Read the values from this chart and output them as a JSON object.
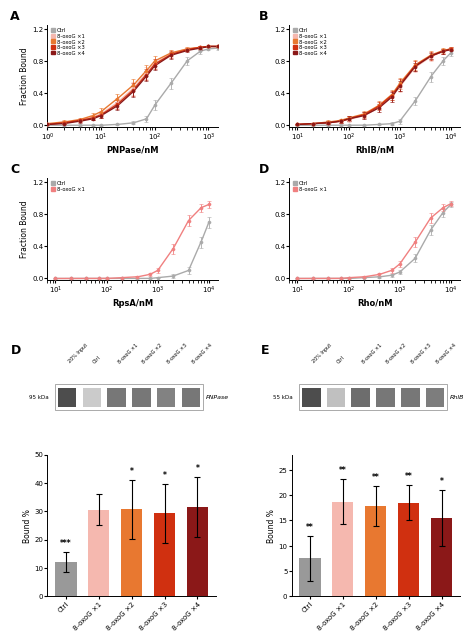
{
  "panel_A": {
    "xlabel": "PNPase/nM",
    "ylabel": "Fraction Bound",
    "xlim": [
      1,
      1500
    ],
    "ylim": [
      -0.02,
      1.25
    ],
    "yticks": [
      0.0,
      0.4,
      0.8,
      1.2
    ],
    "series": {
      "Ctrl": {
        "color": "#aaaaaa",
        "x": [
          1,
          2,
          4,
          7,
          10,
          20,
          40,
          70,
          100,
          200,
          400,
          700,
          1000,
          1500
        ],
        "y": [
          0.0,
          0.0,
          0.0,
          0.0,
          0.0,
          0.01,
          0.03,
          0.08,
          0.25,
          0.52,
          0.8,
          0.92,
          0.95,
          0.96
        ],
        "yerr": [
          0.005,
          0.005,
          0.005,
          0.005,
          0.005,
          0.01,
          0.02,
          0.04,
          0.06,
          0.07,
          0.05,
          0.03,
          0.02,
          0.02
        ]
      },
      "8-oxoG ×1": {
        "color": "#f5b8af",
        "x": [
          1,
          2,
          4,
          7,
          10,
          20,
          40,
          70,
          100,
          200,
          400,
          700,
          1000,
          1500
        ],
        "y": [
          0.01,
          0.03,
          0.06,
          0.1,
          0.14,
          0.28,
          0.46,
          0.65,
          0.77,
          0.89,
          0.95,
          0.97,
          0.98,
          0.98
        ],
        "yerr": [
          0.01,
          0.02,
          0.02,
          0.03,
          0.04,
          0.06,
          0.08,
          0.07,
          0.06,
          0.04,
          0.02,
          0.02,
          0.01,
          0.01
        ]
      },
      "8-oxoG ×2": {
        "color": "#e87830",
        "x": [
          1,
          2,
          4,
          7,
          10,
          20,
          40,
          70,
          100,
          200,
          400,
          700,
          1000,
          1500
        ],
        "y": [
          0.02,
          0.04,
          0.07,
          0.12,
          0.17,
          0.33,
          0.5,
          0.68,
          0.8,
          0.9,
          0.95,
          0.97,
          0.98,
          0.98
        ],
        "yerr": [
          0.01,
          0.02,
          0.02,
          0.03,
          0.04,
          0.06,
          0.08,
          0.07,
          0.06,
          0.04,
          0.02,
          0.02,
          0.01,
          0.01
        ]
      },
      "8-oxoG ×3": {
        "color": "#d03010",
        "x": [
          1,
          2,
          4,
          7,
          10,
          20,
          40,
          70,
          100,
          200,
          400,
          700,
          1000,
          1500
        ],
        "y": [
          0.01,
          0.03,
          0.06,
          0.09,
          0.13,
          0.26,
          0.44,
          0.63,
          0.76,
          0.88,
          0.94,
          0.97,
          0.98,
          0.98
        ],
        "yerr": [
          0.01,
          0.02,
          0.02,
          0.03,
          0.04,
          0.06,
          0.08,
          0.07,
          0.06,
          0.04,
          0.02,
          0.02,
          0.01,
          0.01
        ]
      },
      "8-oxoG ×4": {
        "color": "#8b1818",
        "x": [
          1,
          2,
          4,
          7,
          10,
          20,
          40,
          70,
          100,
          200,
          400,
          700,
          1000,
          1500
        ],
        "y": [
          0.01,
          0.02,
          0.05,
          0.08,
          0.12,
          0.24,
          0.42,
          0.61,
          0.74,
          0.87,
          0.93,
          0.96,
          0.98,
          0.98
        ],
        "yerr": [
          0.01,
          0.01,
          0.02,
          0.02,
          0.03,
          0.05,
          0.07,
          0.06,
          0.05,
          0.04,
          0.02,
          0.02,
          0.01,
          0.01
        ]
      }
    }
  },
  "panel_B": {
    "xlabel": "RhlB/nM",
    "ylabel": "Fraction Bound",
    "xlim": [
      7,
      15000
    ],
    "ylim": [
      -0.02,
      1.25
    ],
    "yticks": [
      0.0,
      0.4,
      0.8,
      1.2
    ],
    "series": {
      "Ctrl": {
        "color": "#aaaaaa",
        "x": [
          10,
          20,
          40,
          70,
          100,
          200,
          400,
          700,
          1000,
          2000,
          4000,
          7000,
          10000
        ],
        "y": [
          0.0,
          0.0,
          0.0,
          0.0,
          0.0,
          0.0,
          0.01,
          0.02,
          0.05,
          0.3,
          0.6,
          0.8,
          0.9
        ],
        "yerr": [
          0.005,
          0.005,
          0.005,
          0.005,
          0.005,
          0.005,
          0.01,
          0.02,
          0.03,
          0.05,
          0.06,
          0.05,
          0.04
        ]
      },
      "8-oxoG ×1": {
        "color": "#f5b8af",
        "x": [
          10,
          20,
          40,
          70,
          100,
          200,
          400,
          700,
          1000,
          2000,
          4000,
          7000,
          10000
        ],
        "y": [
          0.01,
          0.02,
          0.03,
          0.05,
          0.07,
          0.12,
          0.22,
          0.35,
          0.48,
          0.72,
          0.85,
          0.92,
          0.95
        ],
        "yerr": [
          0.01,
          0.01,
          0.02,
          0.02,
          0.03,
          0.04,
          0.05,
          0.06,
          0.07,
          0.06,
          0.05,
          0.03,
          0.02
        ]
      },
      "8-oxoG ×2": {
        "color": "#e87830",
        "x": [
          10,
          20,
          40,
          70,
          100,
          200,
          400,
          700,
          1000,
          2000,
          4000,
          7000,
          10000
        ],
        "y": [
          0.01,
          0.02,
          0.04,
          0.06,
          0.09,
          0.14,
          0.25,
          0.38,
          0.52,
          0.75,
          0.87,
          0.93,
          0.95
        ],
        "yerr": [
          0.01,
          0.01,
          0.02,
          0.02,
          0.03,
          0.04,
          0.05,
          0.06,
          0.07,
          0.06,
          0.05,
          0.03,
          0.02
        ]
      },
      "8-oxoG ×3": {
        "color": "#d03010",
        "x": [
          10,
          20,
          40,
          70,
          100,
          200,
          400,
          700,
          1000,
          2000,
          4000,
          7000,
          10000
        ],
        "y": [
          0.01,
          0.02,
          0.03,
          0.05,
          0.08,
          0.13,
          0.24,
          0.37,
          0.5,
          0.74,
          0.86,
          0.92,
          0.95
        ],
        "yerr": [
          0.01,
          0.01,
          0.02,
          0.02,
          0.03,
          0.04,
          0.05,
          0.06,
          0.07,
          0.06,
          0.05,
          0.03,
          0.02
        ]
      },
      "8-oxoG ×4": {
        "color": "#8b1818",
        "x": [
          10,
          20,
          40,
          70,
          100,
          200,
          400,
          700,
          1000,
          2000,
          4000,
          7000,
          10000
        ],
        "y": [
          0.01,
          0.02,
          0.03,
          0.05,
          0.08,
          0.12,
          0.22,
          0.35,
          0.49,
          0.73,
          0.86,
          0.92,
          0.94
        ],
        "yerr": [
          0.01,
          0.01,
          0.02,
          0.02,
          0.03,
          0.04,
          0.05,
          0.06,
          0.06,
          0.05,
          0.04,
          0.03,
          0.02
        ]
      }
    }
  },
  "panel_C": {
    "xlabel": "RpsA/nM",
    "ylabel": "Fraction Bound",
    "xlim": [
      7,
      15000
    ],
    "ylim": [
      -0.02,
      1.25
    ],
    "yticks": [
      0.0,
      0.4,
      0.8,
      1.2
    ],
    "series": {
      "Ctrl": {
        "color": "#aaaaaa",
        "x": [
          10,
          20,
          40,
          70,
          100,
          200,
          400,
          700,
          1000,
          2000,
          4000,
          7000,
          10000
        ],
        "y": [
          0.0,
          0.0,
          0.0,
          0.0,
          0.0,
          0.0,
          0.0,
          0.0,
          0.01,
          0.03,
          0.1,
          0.45,
          0.7
        ],
        "yerr": [
          0.003,
          0.003,
          0.003,
          0.003,
          0.003,
          0.003,
          0.003,
          0.005,
          0.01,
          0.02,
          0.04,
          0.07,
          0.07
        ]
      },
      "8-oxoG ×1": {
        "color": "#f08080",
        "x": [
          10,
          20,
          40,
          70,
          100,
          200,
          400,
          700,
          1000,
          2000,
          4000,
          7000,
          10000
        ],
        "y": [
          0.0,
          0.0,
          0.0,
          0.0,
          0.0,
          0.01,
          0.02,
          0.05,
          0.1,
          0.37,
          0.72,
          0.88,
          0.92
        ],
        "yerr": [
          0.003,
          0.003,
          0.003,
          0.003,
          0.003,
          0.01,
          0.01,
          0.02,
          0.03,
          0.06,
          0.07,
          0.05,
          0.04
        ]
      }
    }
  },
  "panel_D": {
    "xlabel": "Rho/nM",
    "ylabel": "Fraction Bound",
    "xlim": [
      7,
      15000
    ],
    "ylim": [
      -0.02,
      1.25
    ],
    "yticks": [
      0.0,
      0.4,
      0.8,
      1.2
    ],
    "series": {
      "Ctrl": {
        "color": "#aaaaaa",
        "x": [
          10,
          20,
          40,
          70,
          100,
          200,
          400,
          700,
          1000,
          2000,
          4000,
          7000,
          10000
        ],
        "y": [
          0.0,
          0.0,
          0.0,
          0.0,
          0.0,
          0.01,
          0.02,
          0.04,
          0.08,
          0.25,
          0.6,
          0.82,
          0.92
        ],
        "yerr": [
          0.003,
          0.003,
          0.003,
          0.003,
          0.003,
          0.01,
          0.01,
          0.02,
          0.03,
          0.05,
          0.06,
          0.05,
          0.03
        ]
      },
      "8-oxoG ×1": {
        "color": "#f08080",
        "x": [
          10,
          20,
          40,
          70,
          100,
          200,
          400,
          700,
          1000,
          2000,
          4000,
          7000,
          10000
        ],
        "y": [
          0.0,
          0.0,
          0.0,
          0.0,
          0.01,
          0.02,
          0.05,
          0.1,
          0.18,
          0.45,
          0.75,
          0.88,
          0.93
        ],
        "yerr": [
          0.003,
          0.003,
          0.003,
          0.003,
          0.01,
          0.01,
          0.02,
          0.03,
          0.04,
          0.06,
          0.06,
          0.04,
          0.03
        ]
      }
    }
  },
  "bar_D": {
    "categories": [
      "Ctrl",
      "8-oxoG ×1",
      "8-oxoG ×2",
      "8-oxoG ×3",
      "8-oxoG ×4"
    ],
    "values": [
      12,
      30.5,
      30.7,
      29.3,
      31.5
    ],
    "errors": [
      3.5,
      5.5,
      10.5,
      10.5,
      10.5
    ],
    "colors": [
      "#999999",
      "#f5b8af",
      "#e87830",
      "#d03010",
      "#8b1818"
    ],
    "ylabel": "Bound %",
    "ylim": [
      0,
      50
    ],
    "yticks": [
      0,
      10,
      20,
      30,
      40,
      50
    ],
    "protein_label": "PNPase",
    "kda_label": "95 kDa",
    "stars": [
      "***",
      "",
      "*",
      "*",
      "*"
    ],
    "star_pos": [
      0,
      1,
      2,
      3,
      4
    ]
  },
  "bar_E": {
    "categories": [
      "Ctrl",
      "8-oxoG ×1",
      "8-oxoG ×2",
      "8-oxoG ×3",
      "8-oxoG ×4"
    ],
    "values": [
      7.5,
      18.7,
      17.8,
      18.5,
      15.5
    ],
    "errors": [
      4.5,
      4.5,
      4.0,
      3.5,
      5.5
    ],
    "colors": [
      "#999999",
      "#f5b8af",
      "#e87830",
      "#d03010",
      "#8b1818"
    ],
    "ylabel": "Bound %",
    "ylim": [
      0,
      28
    ],
    "yticks": [
      0,
      5,
      10,
      15,
      20,
      25
    ],
    "protein_label": "RhlB",
    "kda_label": "55 kDa",
    "stars": [
      "**",
      "**",
      "**",
      "**",
      "*"
    ],
    "star_pos": [
      0,
      1,
      2,
      3,
      4
    ]
  },
  "blot_D": {
    "lane_intensities": [
      0.85,
      0.25,
      0.65,
      0.65,
      0.6,
      0.65
    ],
    "background": "#b8b8b8"
  },
  "blot_E": {
    "lane_intensities": [
      0.85,
      0.3,
      0.7,
      0.65,
      0.65,
      0.62
    ],
    "background": "#b0b0b0"
  },
  "input_label": "20% Input",
  "lane_labels": [
    "20% Input",
    "Ctrl",
    "8-oxoG ×1",
    "8-oxoG ×2",
    "8-oxoG ×3",
    "8-oxoG ×4"
  ]
}
